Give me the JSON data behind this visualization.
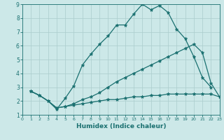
{
  "xlabel": "Humidex (Indice chaleur)",
  "ylabel": "",
  "bg_color": "#cce8e8",
  "grid_color": "#aacccc",
  "line_color": "#1a7070",
  "xlim": [
    0,
    23
  ],
  "ylim": [
    1,
    9
  ],
  "xticks": [
    0,
    1,
    2,
    3,
    4,
    5,
    6,
    7,
    8,
    9,
    10,
    11,
    12,
    13,
    14,
    15,
    16,
    17,
    18,
    19,
    20,
    21,
    22,
    23
  ],
  "yticks": [
    1,
    2,
    3,
    4,
    5,
    6,
    7,
    8,
    9
  ],
  "series": [
    {
      "x": [
        1,
        2,
        3,
        4,
        5,
        6,
        7,
        8,
        9,
        10,
        11,
        12,
        13,
        14,
        15,
        16,
        17,
        18,
        19,
        20,
        21,
        22
      ],
      "y": [
        2.7,
        2.4,
        2.0,
        1.4,
        2.2,
        3.1,
        4.6,
        5.4,
        6.1,
        6.7,
        7.5,
        7.5,
        8.3,
        9.0,
        8.6,
        8.9,
        8.4,
        7.2,
        6.5,
        5.2,
        3.7,
        3.0
      ]
    },
    {
      "x": [
        1,
        2,
        3,
        4,
        5,
        6,
        7,
        8,
        9,
        10,
        11,
        12,
        13,
        14,
        15,
        16,
        17,
        18,
        19,
        20,
        21,
        22,
        23
      ],
      "y": [
        2.7,
        2.4,
        2.0,
        1.5,
        1.6,
        1.7,
        1.8,
        1.9,
        2.0,
        2.1,
        2.1,
        2.2,
        2.3,
        2.3,
        2.4,
        2.4,
        2.5,
        2.5,
        2.5,
        2.5,
        2.5,
        2.5,
        2.3
      ]
    },
    {
      "x": [
        1,
        2,
        3,
        4,
        5,
        6,
        7,
        8,
        9,
        10,
        11,
        12,
        13,
        14,
        15,
        16,
        17,
        18,
        19,
        20,
        21,
        22,
        23
      ],
      "y": [
        2.7,
        2.4,
        2.0,
        1.5,
        1.6,
        1.8,
        2.1,
        2.3,
        2.6,
        3.0,
        3.4,
        3.7,
        4.0,
        4.3,
        4.6,
        4.9,
        5.2,
        5.5,
        5.8,
        6.1,
        5.5,
        3.3,
        2.3
      ]
    }
  ]
}
